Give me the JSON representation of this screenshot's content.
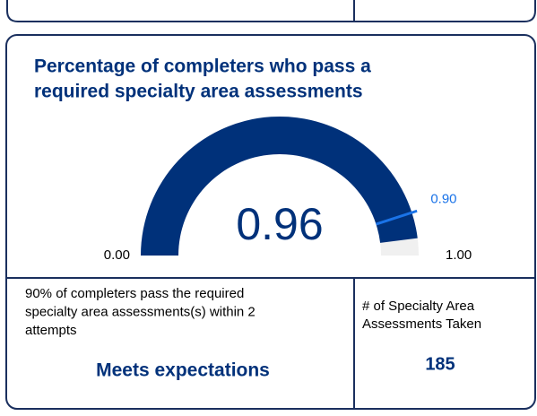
{
  "chart_data": {
    "type": "gauge",
    "title": [
      "Percentage of completers who pass a",
      "required specialty area assessments"
    ],
    "value": 0.96,
    "color": "#00317a",
    "track_color": "#f0f0f0",
    "min": {
      "value": 0,
      "label": "0.00"
    },
    "max": {
      "value": 1,
      "label": "1.00"
    },
    "target": {
      "value": 0.9,
      "label": "0.90",
      "color": "#1a73e8"
    }
  },
  "panels": {
    "description": [
      "90% of completers pass the required",
      "specialty area assessments(s) within 2",
      "attempts"
    ],
    "status": "Meets expectations",
    "count_label": [
      "# of Specialty Area",
      "Assessments Taken"
    ],
    "count": "185"
  }
}
